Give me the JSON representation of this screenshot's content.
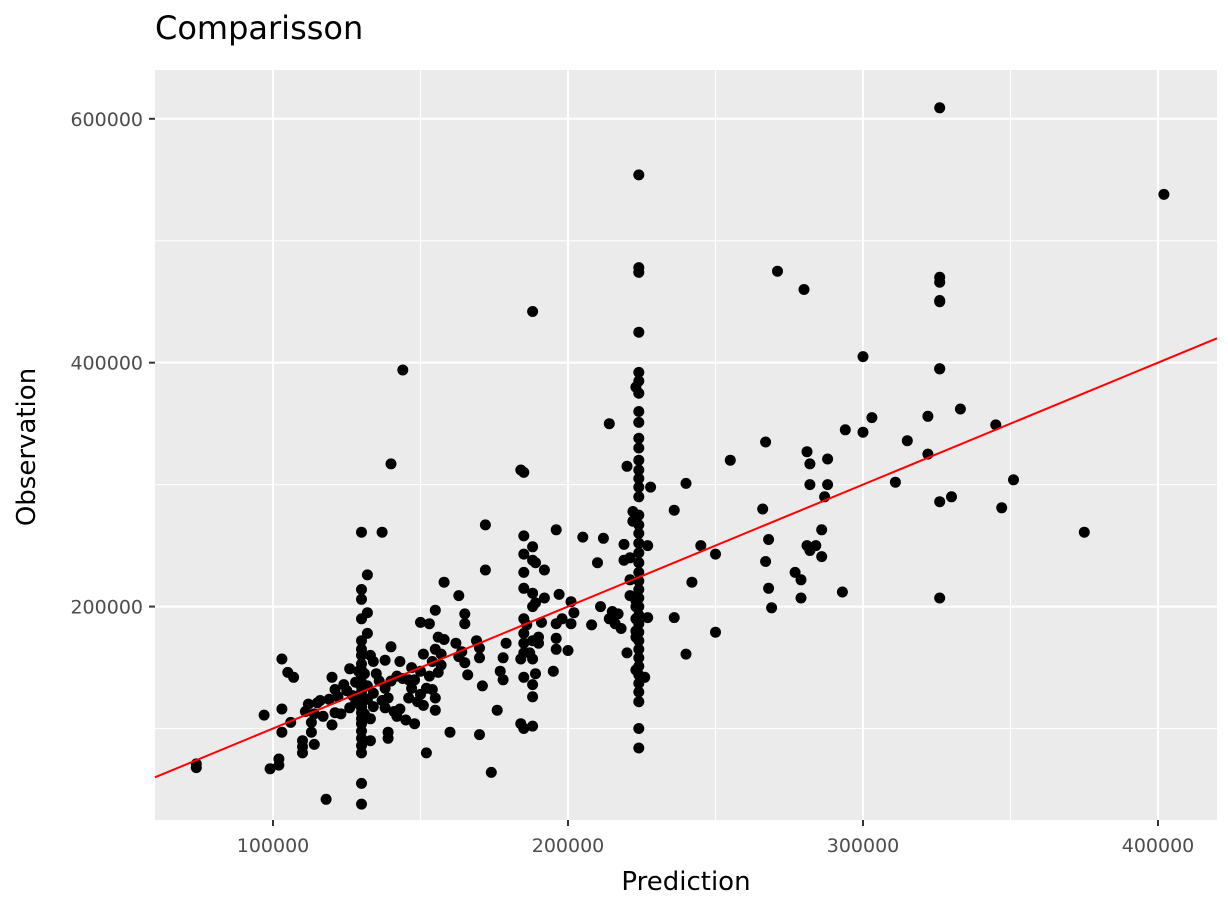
{
  "chart_data": {
    "type": "scatter",
    "title": "Comparisson",
    "xlabel": "Prediction",
    "ylabel": "Observation",
    "xlim": [
      60000,
      420000
    ],
    "ylim": [
      25000,
      640000
    ],
    "x_ticks": [
      100000,
      200000,
      300000,
      400000
    ],
    "x_tick_labels": [
      "100000",
      "200000",
      "300000",
      "400000"
    ],
    "y_ticks": [
      200000,
      400000,
      600000
    ],
    "y_tick_labels": [
      "200000",
      "400000",
      "600000"
    ],
    "grid": true,
    "panel_color": "#ebebeb",
    "grid_color": "#ffffff",
    "point_color": "#000000",
    "reference_line": {
      "slope": 1,
      "intercept": 0,
      "color": "#ff0000"
    },
    "points": [
      [
        74000,
        68000
      ],
      [
        74000,
        71000
      ],
      [
        97000,
        111000
      ],
      [
        99000,
        67000
      ],
      [
        102000,
        75000
      ],
      [
        102000,
        70000
      ],
      [
        103000,
        116000
      ],
      [
        103000,
        97000
      ],
      [
        103000,
        157000
      ],
      [
        105000,
        146000
      ],
      [
        106000,
        105000
      ],
      [
        107000,
        142000
      ],
      [
        110000,
        90000
      ],
      [
        110000,
        85000
      ],
      [
        110000,
        80000
      ],
      [
        111000,
        114000
      ],
      [
        112000,
        120000
      ],
      [
        113000,
        105000
      ],
      [
        113000,
        97000
      ],
      [
        114000,
        87000
      ],
      [
        114000,
        112000
      ],
      [
        115000,
        121000
      ],
      [
        116000,
        123000
      ],
      [
        117000,
        110000
      ],
      [
        118000,
        42000
      ],
      [
        119000,
        124000
      ],
      [
        120000,
        103000
      ],
      [
        120000,
        142000
      ],
      [
        121000,
        113000
      ],
      [
        121000,
        132000
      ],
      [
        122000,
        126000
      ],
      [
        123000,
        112000
      ],
      [
        124000,
        136000
      ],
      [
        125000,
        131000
      ],
      [
        126000,
        117000
      ],
      [
        126000,
        149000
      ],
      [
        127000,
        127000
      ],
      [
        128000,
        121000
      ],
      [
        128000,
        138000
      ],
      [
        129000,
        147000
      ],
      [
        130000,
        120000
      ],
      [
        130000,
        118000
      ],
      [
        130000,
        124000
      ],
      [
        130000,
        261000
      ],
      [
        130000,
        214000
      ],
      [
        130000,
        206000
      ],
      [
        130000,
        190000
      ],
      [
        130000,
        172000
      ],
      [
        130000,
        165000
      ],
      [
        130000,
        160000
      ],
      [
        130000,
        153000
      ],
      [
        130000,
        148000
      ],
      [
        130000,
        143000
      ],
      [
        130000,
        138000
      ],
      [
        130000,
        134000
      ],
      [
        130000,
        130000
      ],
      [
        130000,
        126000
      ],
      [
        130000,
        122000
      ],
      [
        130000,
        117000
      ],
      [
        130000,
        113000
      ],
      [
        130000,
        108000
      ],
      [
        130000,
        104000
      ],
      [
        130000,
        98000
      ],
      [
        130000,
        92000
      ],
      [
        130000,
        86000
      ],
      [
        130000,
        80000
      ],
      [
        130000,
        55000
      ],
      [
        130000,
        38000
      ],
      [
        131000,
        145000
      ],
      [
        131000,
        112000
      ],
      [
        132000,
        226000
      ],
      [
        132000,
        195000
      ],
      [
        132000,
        178000
      ],
      [
        132000,
        135000
      ],
      [
        132000,
        124000
      ],
      [
        133000,
        160000
      ],
      [
        133000,
        108000
      ],
      [
        133000,
        90000
      ],
      [
        134000,
        155000
      ],
      [
        134000,
        118000
      ],
      [
        134000,
        129000
      ],
      [
        135000,
        145000
      ],
      [
        136000,
        139000
      ],
      [
        137000,
        261000
      ],
      [
        137000,
        123000
      ],
      [
        138000,
        117000
      ],
      [
        138000,
        156000
      ],
      [
        138000,
        133000
      ],
      [
        139000,
        97000
      ],
      [
        139000,
        92000
      ],
      [
        139000,
        125000
      ],
      [
        140000,
        317000
      ],
      [
        140000,
        167000
      ],
      [
        140000,
        139000
      ],
      [
        141000,
        114000
      ],
      [
        142000,
        110000
      ],
      [
        142000,
        143000
      ],
      [
        143000,
        155000
      ],
      [
        143000,
        116000
      ],
      [
        144000,
        394000
      ],
      [
        144000,
        141000
      ],
      [
        145000,
        107000
      ],
      [
        146000,
        140000
      ],
      [
        146000,
        125000
      ],
      [
        147000,
        150000
      ],
      [
        147000,
        133000
      ],
      [
        148000,
        140000
      ],
      [
        148000,
        104000
      ],
      [
        149000,
        122000
      ],
      [
        150000,
        147000
      ],
      [
        150000,
        187000
      ],
      [
        150000,
        128000
      ],
      [
        151000,
        119000
      ],
      [
        151000,
        161000
      ],
      [
        152000,
        133000
      ],
      [
        152000,
        80000
      ],
      [
        153000,
        143000
      ],
      [
        153000,
        186000
      ],
      [
        154000,
        155000
      ],
      [
        154000,
        132000
      ],
      [
        155000,
        197000
      ],
      [
        155000,
        115000
      ],
      [
        155000,
        165000
      ],
      [
        155000,
        125000
      ],
      [
        156000,
        175000
      ],
      [
        156000,
        146000
      ],
      [
        157000,
        161000
      ],
      [
        157000,
        152000
      ],
      [
        158000,
        220000
      ],
      [
        158000,
        173000
      ],
      [
        160000,
        97000
      ],
      [
        162000,
        170000
      ],
      [
        163000,
        209000
      ],
      [
        163000,
        159000
      ],
      [
        164000,
        163000
      ],
      [
        165000,
        154000
      ],
      [
        165000,
        194000
      ],
      [
        165000,
        186000
      ],
      [
        166000,
        144000
      ],
      [
        169000,
        172000
      ],
      [
        170000,
        95000
      ],
      [
        170000,
        166000
      ],
      [
        170000,
        158000
      ],
      [
        171000,
        135000
      ],
      [
        172000,
        267000
      ],
      [
        172000,
        230000
      ],
      [
        174000,
        64000
      ],
      [
        176000,
        115000
      ],
      [
        177000,
        147000
      ],
      [
        178000,
        158000
      ],
      [
        178000,
        140000
      ],
      [
        179000,
        170000
      ],
      [
        184000,
        104000
      ],
      [
        184000,
        312000
      ],
      [
        184000,
        157000
      ],
      [
        185000,
        310000
      ],
      [
        185000,
        258000
      ],
      [
        185000,
        243000
      ],
      [
        185000,
        228000
      ],
      [
        185000,
        215000
      ],
      [
        185000,
        190000
      ],
      [
        185000,
        178000
      ],
      [
        185000,
        170000
      ],
      [
        185000,
        162000
      ],
      [
        185000,
        142000
      ],
      [
        185000,
        100000
      ],
      [
        186000,
        185000
      ],
      [
        187000,
        162000
      ],
      [
        188000,
        102000
      ],
      [
        188000,
        442000
      ],
      [
        188000,
        249000
      ],
      [
        188000,
        238000
      ],
      [
        188000,
        211000
      ],
      [
        188000,
        200000
      ],
      [
        188000,
        172000
      ],
      [
        188000,
        157000
      ],
      [
        188000,
        136000
      ],
      [
        188000,
        126000
      ],
      [
        189000,
        236000
      ],
      [
        189000,
        203000
      ],
      [
        189000,
        145000
      ],
      [
        190000,
        170000
      ],
      [
        190000,
        175000
      ],
      [
        191000,
        187000
      ],
      [
        192000,
        230000
      ],
      [
        192000,
        207000
      ],
      [
        195000,
        147000
      ],
      [
        196000,
        263000
      ],
      [
        196000,
        186000
      ],
      [
        196000,
        174000
      ],
      [
        196000,
        165000
      ],
      [
        197000,
        210000
      ],
      [
        198000,
        190000
      ],
      [
        200000,
        164000
      ],
      [
        201000,
        186000
      ],
      [
        201000,
        204000
      ],
      [
        202000,
        195000
      ],
      [
        205000,
        257000
      ],
      [
        208000,
        185000
      ],
      [
        210000,
        236000
      ],
      [
        211000,
        200000
      ],
      [
        212000,
        256000
      ],
      [
        214000,
        350000
      ],
      [
        214000,
        190000
      ],
      [
        215000,
        196000
      ],
      [
        216000,
        186000
      ],
      [
        217000,
        194000
      ],
      [
        218000,
        182000
      ],
      [
        219000,
        238000
      ],
      [
        219000,
        251000
      ],
      [
        220000,
        315000
      ],
      [
        220000,
        162000
      ],
      [
        221000,
        222000
      ],
      [
        221000,
        209000
      ],
      [
        221000,
        240000
      ],
      [
        222000,
        278000
      ],
      [
        222000,
        270000
      ],
      [
        223000,
        380000
      ],
      [
        223000,
        205000
      ],
      [
        223000,
        175000
      ],
      [
        223000,
        148000
      ],
      [
        223000,
        200000
      ],
      [
        223000,
        190000
      ],
      [
        223000,
        180000
      ],
      [
        224000,
        554000
      ],
      [
        224000,
        478000
      ],
      [
        224000,
        474000
      ],
      [
        224000,
        425000
      ],
      [
        224000,
        392000
      ],
      [
        224000,
        385000
      ],
      [
        224000,
        375000
      ],
      [
        224000,
        360000
      ],
      [
        224000,
        351000
      ],
      [
        224000,
        338000
      ],
      [
        224000,
        330000
      ],
      [
        224000,
        320000
      ],
      [
        224000,
        312000
      ],
      [
        224000,
        305000
      ],
      [
        224000,
        298000
      ],
      [
        224000,
        290000
      ],
      [
        224000,
        275000
      ],
      [
        224000,
        267000
      ],
      [
        224000,
        260000
      ],
      [
        224000,
        252000
      ],
      [
        224000,
        244000
      ],
      [
        224000,
        236000
      ],
      [
        224000,
        228000
      ],
      [
        224000,
        221000
      ],
      [
        224000,
        214000
      ],
      [
        224000,
        207000
      ],
      [
        224000,
        200000
      ],
      [
        224000,
        193000
      ],
      [
        224000,
        186000
      ],
      [
        224000,
        179000
      ],
      [
        224000,
        172000
      ],
      [
        224000,
        165000
      ],
      [
        224000,
        158000
      ],
      [
        224000,
        151000
      ],
      [
        224000,
        144000
      ],
      [
        224000,
        137000
      ],
      [
        224000,
        130000
      ],
      [
        224000,
        122000
      ],
      [
        224000,
        100000
      ],
      [
        224000,
        84000
      ],
      [
        226000,
        142000
      ],
      [
        227000,
        250000
      ],
      [
        227000,
        191000
      ],
      [
        228000,
        298000
      ],
      [
        236000,
        279000
      ],
      [
        236000,
        191000
      ],
      [
        240000,
        301000
      ],
      [
        240000,
        161000
      ],
      [
        242000,
        220000
      ],
      [
        245000,
        250000
      ],
      [
        250000,
        243000
      ],
      [
        250000,
        179000
      ],
      [
        255000,
        320000
      ],
      [
        266000,
        280000
      ],
      [
        267000,
        335000
      ],
      [
        267000,
        237000
      ],
      [
        268000,
        255000
      ],
      [
        268000,
        215000
      ],
      [
        269000,
        199000
      ],
      [
        271000,
        475000
      ],
      [
        277000,
        228000
      ],
      [
        279000,
        222000
      ],
      [
        279000,
        207000
      ],
      [
        280000,
        460000
      ],
      [
        281000,
        327000
      ],
      [
        281000,
        250000
      ],
      [
        282000,
        317000
      ],
      [
        282000,
        300000
      ],
      [
        282000,
        246000
      ],
      [
        284000,
        250000
      ],
      [
        286000,
        263000
      ],
      [
        286000,
        241000
      ],
      [
        287000,
        290000
      ],
      [
        288000,
        321000
      ],
      [
        288000,
        300000
      ],
      [
        293000,
        212000
      ],
      [
        294000,
        345000
      ],
      [
        300000,
        405000
      ],
      [
        300000,
        343000
      ],
      [
        303000,
        355000
      ],
      [
        311000,
        302000
      ],
      [
        315000,
        336000
      ],
      [
        322000,
        356000
      ],
      [
        322000,
        325000
      ],
      [
        326000,
        609000
      ],
      [
        326000,
        470000
      ],
      [
        326000,
        466000
      ],
      [
        326000,
        451000
      ],
      [
        326000,
        450000
      ],
      [
        326000,
        395000
      ],
      [
        326000,
        395000
      ],
      [
        326000,
        286000
      ],
      [
        326000,
        207000
      ],
      [
        330000,
        290000
      ],
      [
        333000,
        362000
      ],
      [
        345000,
        349000
      ],
      [
        347000,
        281000
      ],
      [
        351000,
        304000
      ],
      [
        375000,
        261000
      ],
      [
        402000,
        538000
      ]
    ]
  }
}
